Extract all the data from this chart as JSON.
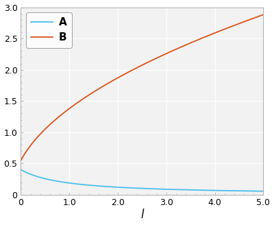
{
  "xlim": [
    0,
    5
  ],
  "ylim": [
    0,
    3.0
  ],
  "xticks": [
    0,
    1.0,
    2.0,
    3.0,
    4.0,
    5.0
  ],
  "yticks": [
    0,
    0.5,
    1.0,
    1.5,
    2.0,
    2.5,
    3.0
  ],
  "xlabel": "l",
  "color_A": "#4DBEEE",
  "color_B": "#D95319",
  "legend_labels": [
    "A",
    "B"
  ],
  "line_width": 1.3,
  "background_color": "#FFFFFF",
  "axes_background": "#F2F2F2",
  "grid_color": "#FFFFFF",
  "spine_color": "#AAAAAA",
  "A_c": 0.4,
  "A_exp": 1.1,
  "B_a": 0.3,
  "B_b": 1.6,
  "figsize": [
    4.0,
    3.28
  ],
  "dpi": 100
}
